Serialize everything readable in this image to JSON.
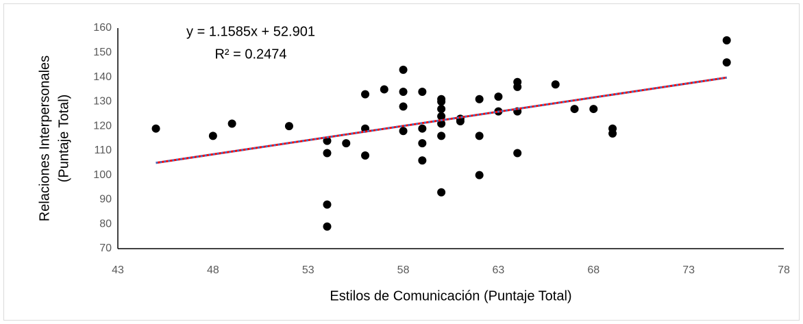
{
  "chart_data": {
    "type": "scatter",
    "xlabel": "Estilos de Comunicación (Puntaje Total)",
    "ylabel": [
      "Relaciones Interpersonales",
      "(Puntaje Total)"
    ],
    "annotations": [
      "y = 1.1585x + 52.901",
      "R² = 0.2474"
    ],
    "x": [
      45,
      48,
      49,
      52,
      54,
      54,
      54,
      54,
      55,
      56,
      56,
      56,
      57,
      58,
      58,
      58,
      58,
      59,
      59,
      59,
      59,
      60,
      60,
      60,
      60,
      60,
      60,
      60,
      61,
      61,
      62,
      62,
      62,
      63,
      63,
      64,
      64,
      64,
      64,
      66,
      67,
      68,
      69,
      69,
      75,
      75
    ],
    "y": [
      119,
      116,
      121,
      120,
      114,
      109,
      88,
      79,
      113,
      133,
      119,
      108,
      135,
      143,
      134,
      128,
      118,
      134,
      119,
      113,
      106,
      131,
      130,
      127,
      124,
      121,
      116,
      93,
      123,
      122,
      131,
      116,
      100,
      132,
      126,
      138,
      136,
      126,
      109,
      137,
      127,
      127,
      119,
      117,
      155,
      146
    ],
    "color": "#000000",
    "trendline": {
      "x": [
        45,
        75
      ],
      "y": [
        105.0,
        139.8
      ],
      "colors": [
        "#ff0000",
        "#4472c4"
      ]
    },
    "xlim": [
      43,
      78
    ],
    "xticks": [
      43,
      48,
      53,
      58,
      63,
      68,
      73,
      78
    ],
    "ylim": [
      70,
      160
    ],
    "yticks": [
      70,
      80,
      90,
      100,
      110,
      120,
      130,
      140,
      150,
      160
    ],
    "grid": false
  }
}
